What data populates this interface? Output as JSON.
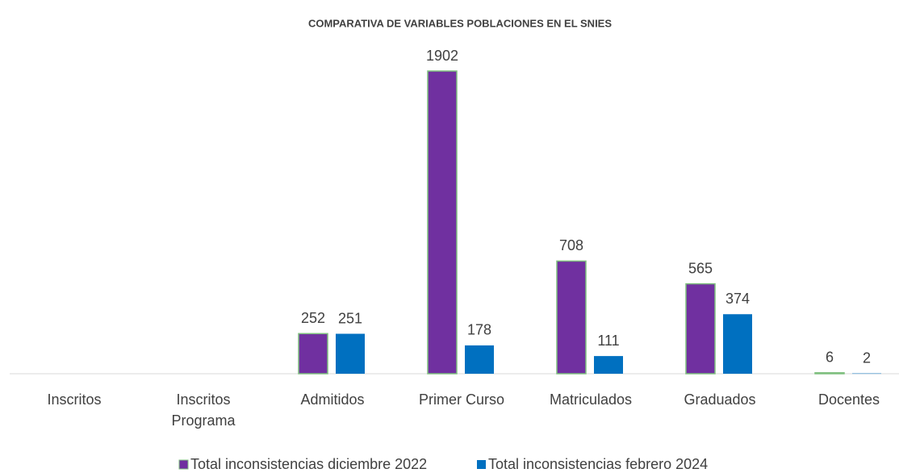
{
  "chart_data": {
    "type": "bar",
    "title": "COMPARATIVA DE VARIABLES POBLACIONES EN EL SNIES",
    "categories": [
      "Inscritos",
      "Inscritos Programa",
      "Admitidos",
      "Primer Curso",
      "Matriculados",
      "Graduados",
      "Docentes"
    ],
    "series": [
      {
        "name": "Total inconsistencias diciembre 2022",
        "color": "#7030a0",
        "values": [
          null,
          null,
          252,
          1902,
          708,
          565,
          6
        ]
      },
      {
        "name": "Total inconsistencias febrero 2024",
        "color": "#0070c0",
        "values": [
          null,
          null,
          251,
          178,
          111,
          374,
          2
        ]
      }
    ],
    "legend": "bottom"
  }
}
